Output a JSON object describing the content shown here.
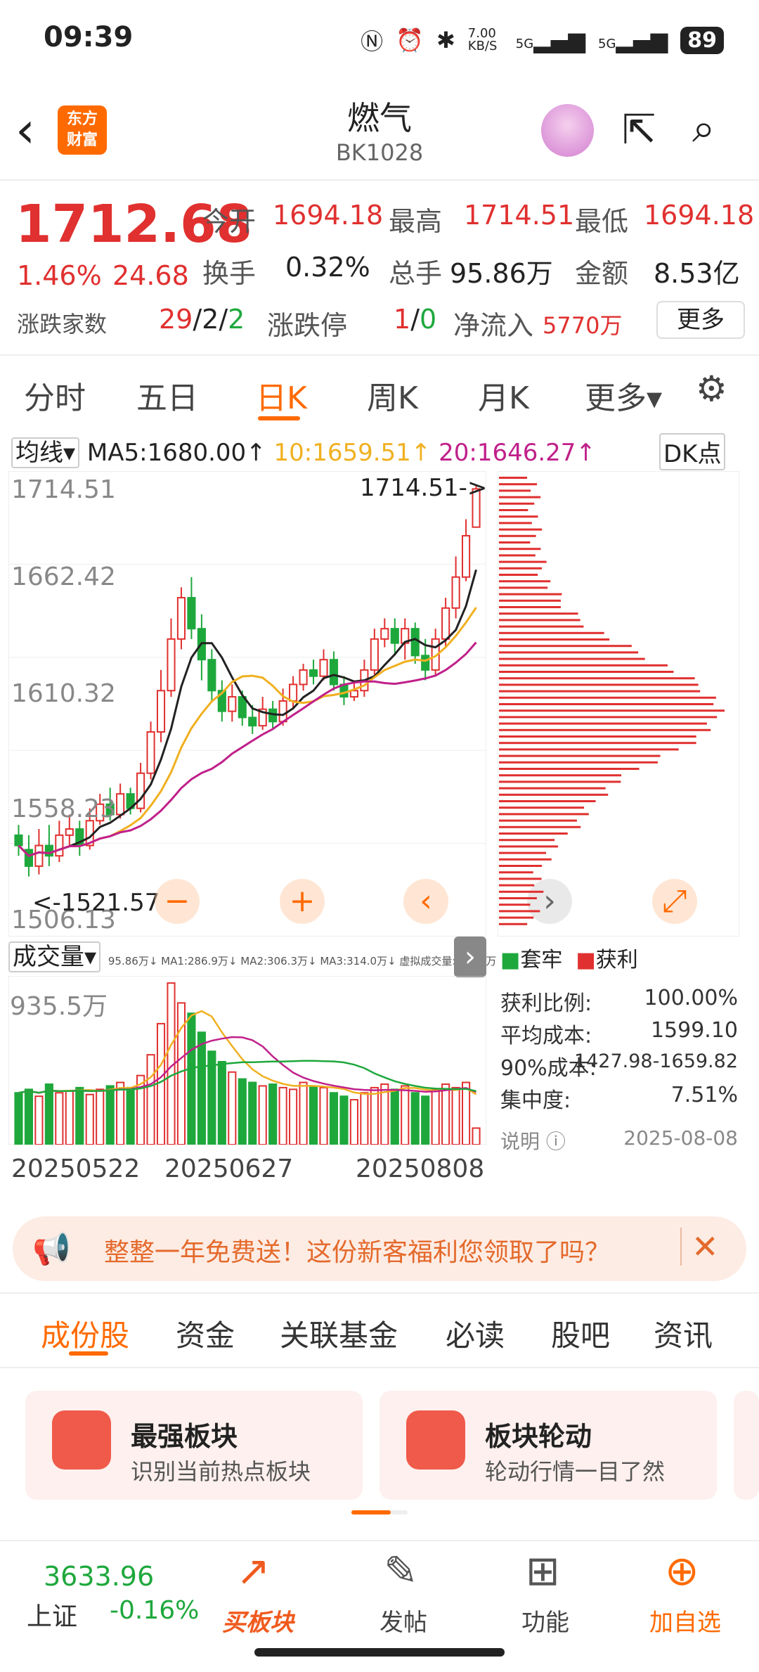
{
  "status": {
    "time": "09:39",
    "network_speed": "7.00 KB/S",
    "sig1": "5G",
    "sig2": "5G",
    "battery": "89"
  },
  "header": {
    "logo_line1": "东方",
    "logo_line2": "财富",
    "title": "燃气",
    "code": "BK1028"
  },
  "quote": {
    "price": "1712.68",
    "pct": "1.46%",
    "chg": "24.68",
    "open_label": "今开",
    "open": "1694.18",
    "high_label": "最高",
    "high": "1714.51",
    "low_label": "最低",
    "low": "1694.18",
    "turnover_label": "换手",
    "turnover": "0.32%",
    "volume_label": "总手",
    "volume": "95.86万",
    "amount_label": "金额",
    "amount": "8.53亿",
    "updown_label": "涨跌家数",
    "up": "29",
    "flat": "2",
    "down": "2",
    "limit_label": "涨跌停",
    "limit_up": "1",
    "limit_down": "0",
    "inflow_label": "净流入",
    "inflow": "5770万",
    "more_label": "更多"
  },
  "period_tabs": [
    "分时",
    "五日",
    "日K",
    "周K",
    "月K",
    "更多▾"
  ],
  "ma_row": {
    "selector": "均线▾",
    "ma5": "MA5:1680.00↑",
    "ma10": "10:1659.51↑",
    "ma20": "20:1646.27↑",
    "dk": "DK点"
  },
  "kchart": {
    "y_labels": [
      "1714.51",
      "1662.42",
      "1610.32",
      "1558.23",
      "1506.13"
    ],
    "max_tag": "1714.51->",
    "min_tag": "<-1521.57"
  },
  "vol_row": {
    "selector": "成交量▾",
    "info": "95.86万↓ MA1:286.9万↓ MA2:306.3万↓ MA3:314.0万↓ 虚拟成交量:412.6万",
    "max": "935.5万"
  },
  "dates": [
    "20250522",
    "20250627",
    "20250808"
  ],
  "profile": {
    "legend_trap": "套牢",
    "legend_profit": "获利",
    "rows": [
      {
        "label": "获利比例:",
        "value": "100.00%"
      },
      {
        "label": "平均成本:",
        "value": "1599.10"
      },
      {
        "label": "90%成本:",
        "value": "1427.98-1659.82"
      },
      {
        "label": "集中度:",
        "value": "7.51%"
      }
    ],
    "note_label": "说明",
    "date": "2025-08-08"
  },
  "banner": {
    "text": "整整一年免费送！这份新客福利您领取了吗？"
  },
  "section_tabs": [
    "成份股",
    "资金",
    "关联基金",
    "必读",
    "股吧",
    "资讯"
  ],
  "cards": [
    {
      "title": "最强板块",
      "sub": "识别当前热点板块"
    },
    {
      "title": "板块轮动",
      "sub": "轮动行情一目了然"
    }
  ],
  "bottom_nav": {
    "index_value": "3633.96",
    "index_name": "上证",
    "index_pct": "-0.16%",
    "items": [
      "买板块",
      "发帖",
      "功能",
      "加自选"
    ]
  },
  "chart_data": {
    "type": "candlestick",
    "y_range": [
      1506.13,
      1714.51
    ],
    "candles": [
      [
        1545,
        1540,
        1550,
        1535
      ],
      [
        1538,
        1530,
        1545,
        1525
      ],
      [
        1530,
        1540,
        1548,
        1526
      ],
      [
        1540,
        1535,
        1550,
        1530
      ],
      [
        1535,
        1545,
        1552,
        1532
      ],
      [
        1545,
        1548,
        1555,
        1540
      ],
      [
        1548,
        1540,
        1552,
        1535
      ],
      [
        1540,
        1552,
        1558,
        1538
      ],
      [
        1552,
        1560,
        1565,
        1550
      ],
      [
        1560,
        1555,
        1568,
        1552
      ],
      [
        1555,
        1565,
        1570,
        1553
      ],
      [
        1565,
        1558,
        1568,
        1555
      ],
      [
        1558,
        1575,
        1580,
        1556
      ],
      [
        1575,
        1595,
        1600,
        1572
      ],
      [
        1595,
        1615,
        1625,
        1590
      ],
      [
        1615,
        1640,
        1650,
        1612
      ],
      [
        1640,
        1660,
        1665,
        1635
      ],
      [
        1660,
        1645,
        1670,
        1640
      ],
      [
        1645,
        1630,
        1652,
        1620
      ],
      [
        1630,
        1615,
        1635,
        1610
      ],
      [
        1615,
        1605,
        1620,
        1600
      ],
      [
        1605,
        1612,
        1618,
        1600
      ],
      [
        1612,
        1602,
        1615,
        1598
      ],
      [
        1602,
        1598,
        1608,
        1594
      ],
      [
        1598,
        1606,
        1612,
        1596
      ],
      [
        1606,
        1600,
        1610,
        1596
      ],
      [
        1600,
        1610,
        1616,
        1598
      ],
      [
        1610,
        1618,
        1622,
        1606
      ],
      [
        1618,
        1625,
        1628,
        1615
      ],
      [
        1625,
        1622,
        1630,
        1618
      ],
      [
        1622,
        1630,
        1635,
        1620
      ],
      [
        1630,
        1618,
        1634,
        1615
      ],
      [
        1618,
        1612,
        1622,
        1608
      ],
      [
        1612,
        1615,
        1620,
        1610
      ],
      [
        1615,
        1625,
        1630,
        1612
      ],
      [
        1625,
        1640,
        1645,
        1622
      ],
      [
        1640,
        1645,
        1650,
        1636
      ],
      [
        1645,
        1638,
        1650,
        1632
      ],
      [
        1638,
        1645,
        1650,
        1630
      ],
      [
        1645,
        1632,
        1648,
        1628
      ],
      [
        1632,
        1625,
        1640,
        1620
      ],
      [
        1625,
        1640,
        1645,
        1622
      ],
      [
        1640,
        1655,
        1660,
        1636
      ],
      [
        1655,
        1670,
        1680,
        1650
      ],
      [
        1670,
        1690,
        1698,
        1668
      ],
      [
        1694.18,
        1712.68,
        1714.51,
        1694.18
      ]
    ],
    "volumes": [
      300,
      320,
      280,
      350,
      300,
      310,
      330,
      290,
      320,
      340,
      360,
      330,
      400,
      520,
      700,
      935,
      820,
      760,
      650,
      540,
      480,
      420,
      380,
      360,
      340,
      350,
      330,
      320,
      360,
      340,
      330,
      300,
      280,
      260,
      300,
      330,
      350,
      320,
      340,
      300,
      280,
      320,
      350,
      330,
      360,
      95.86
    ]
  }
}
